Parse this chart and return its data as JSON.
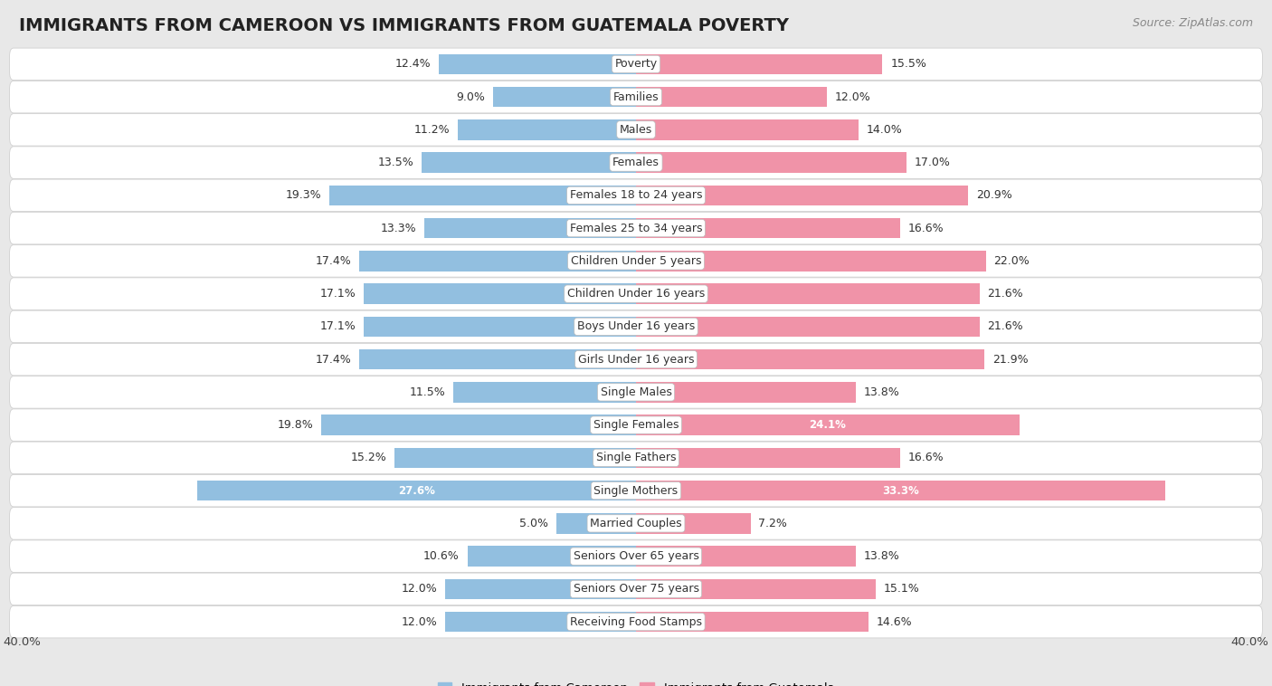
{
  "title": "IMMIGRANTS FROM CAMEROON VS IMMIGRANTS FROM GUATEMALA POVERTY",
  "source": "Source: ZipAtlas.com",
  "categories": [
    "Poverty",
    "Families",
    "Males",
    "Females",
    "Females 18 to 24 years",
    "Females 25 to 34 years",
    "Children Under 5 years",
    "Children Under 16 years",
    "Boys Under 16 years",
    "Girls Under 16 years",
    "Single Males",
    "Single Females",
    "Single Fathers",
    "Single Mothers",
    "Married Couples",
    "Seniors Over 65 years",
    "Seniors Over 75 years",
    "Receiving Food Stamps"
  ],
  "cameroon_values": [
    12.4,
    9.0,
    11.2,
    13.5,
    19.3,
    13.3,
    17.4,
    17.1,
    17.1,
    17.4,
    11.5,
    19.8,
    15.2,
    27.6,
    5.0,
    10.6,
    12.0,
    12.0
  ],
  "guatemala_values": [
    15.5,
    12.0,
    14.0,
    17.0,
    20.9,
    16.6,
    22.0,
    21.6,
    21.6,
    21.9,
    13.8,
    24.1,
    16.6,
    33.3,
    7.2,
    13.8,
    15.1,
    14.6
  ],
  "cameroon_color": "#92bfe0",
  "guatemala_color": "#f093a8",
  "background_color": "#e8e8e8",
  "row_bg_color": "#f5f5f5",
  "axis_limit": 40.0,
  "legend_label_cameroon": "Immigrants from Cameroon",
  "legend_label_guatemala": "Immigrants from Guatemala",
  "title_fontsize": 14,
  "source_fontsize": 9,
  "label_fontsize": 9,
  "value_fontsize": 9,
  "bar_height": 0.62
}
